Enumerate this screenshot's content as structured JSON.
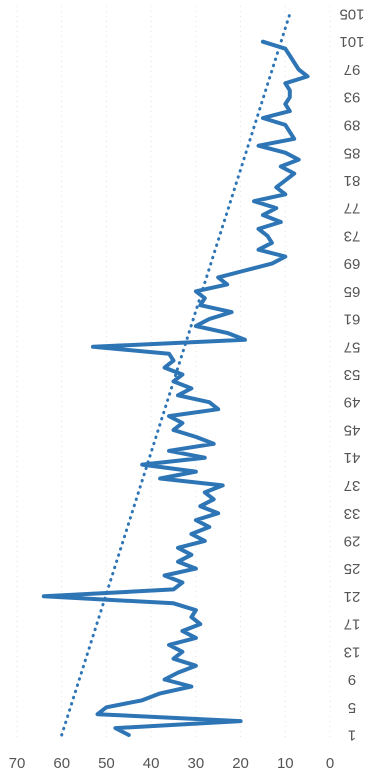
{
  "chart_data": {
    "type": "line",
    "title": "",
    "xlabel": "",
    "ylabel": "",
    "ylim": [
      0,
      70
    ],
    "yticks": [
      0,
      10,
      20,
      30,
      40,
      50,
      60,
      70
    ],
    "xlim": [
      1,
      105
    ],
    "xticks": [
      1,
      5,
      9,
      13,
      17,
      21,
      25,
      29,
      33,
      37,
      41,
      45,
      49,
      53,
      57,
      61,
      65,
      69,
      73,
      77,
      81,
      85,
      89,
      93,
      97,
      101,
      105
    ],
    "grid": "horizontal",
    "legend": "none",
    "series": [
      {
        "color": "#2e75b6",
        "x": [
          1,
          2,
          3,
          4,
          5,
          6,
          7,
          8,
          9,
          10,
          11,
          12,
          13,
          14,
          15,
          16,
          17,
          18,
          19,
          20,
          21,
          22,
          23,
          24,
          25,
          26,
          27,
          28,
          29,
          30,
          31,
          32,
          33,
          34,
          35,
          36,
          37,
          38,
          39,
          40,
          41,
          42,
          43,
          44,
          45,
          46,
          47,
          48,
          49,
          50,
          51,
          52,
          53,
          54,
          55,
          56,
          57,
          58,
          59,
          60,
          61,
          62,
          63,
          64,
          65,
          66,
          67,
          68,
          69,
          70,
          71,
          72,
          73,
          74,
          75,
          76,
          77,
          78,
          79,
          80,
          81,
          82,
          83,
          84,
          85,
          86,
          87,
          88,
          89,
          90,
          91,
          92,
          93,
          94,
          95,
          96,
          97,
          98,
          99,
          100,
          101
        ],
        "y": [
          45,
          48,
          20,
          52,
          50,
          42,
          38,
          31,
          37,
          34,
          30,
          35,
          33,
          36,
          30,
          33,
          29,
          31,
          30,
          35,
          64,
          35,
          33,
          37,
          30,
          34,
          31,
          34,
          28,
          31,
          27,
          30,
          25,
          29,
          26,
          28,
          24,
          38,
          30,
          42,
          28,
          36,
          26,
          30,
          35,
          33,
          36,
          25,
          27,
          34,
          31,
          35,
          33,
          37,
          35,
          36,
          53,
          19,
          23,
          30,
          27,
          22,
          29,
          28,
          30,
          23,
          25,
          19,
          13,
          10,
          16,
          13,
          14,
          16,
          11,
          15,
          12,
          17,
          10,
          12,
          10,
          8,
          11,
          7,
          10,
          16,
          8,
          9,
          10,
          15,
          9,
          10,
          9,
          9,
          10,
          5,
          7,
          8,
          9,
          10,
          15
        ],
        "line_style": "solid"
      },
      {
        "color": "#2e75b6",
        "x": [
          1,
          105
        ],
        "y": [
          60,
          9
        ],
        "line_style": "dotted"
      }
    ]
  }
}
